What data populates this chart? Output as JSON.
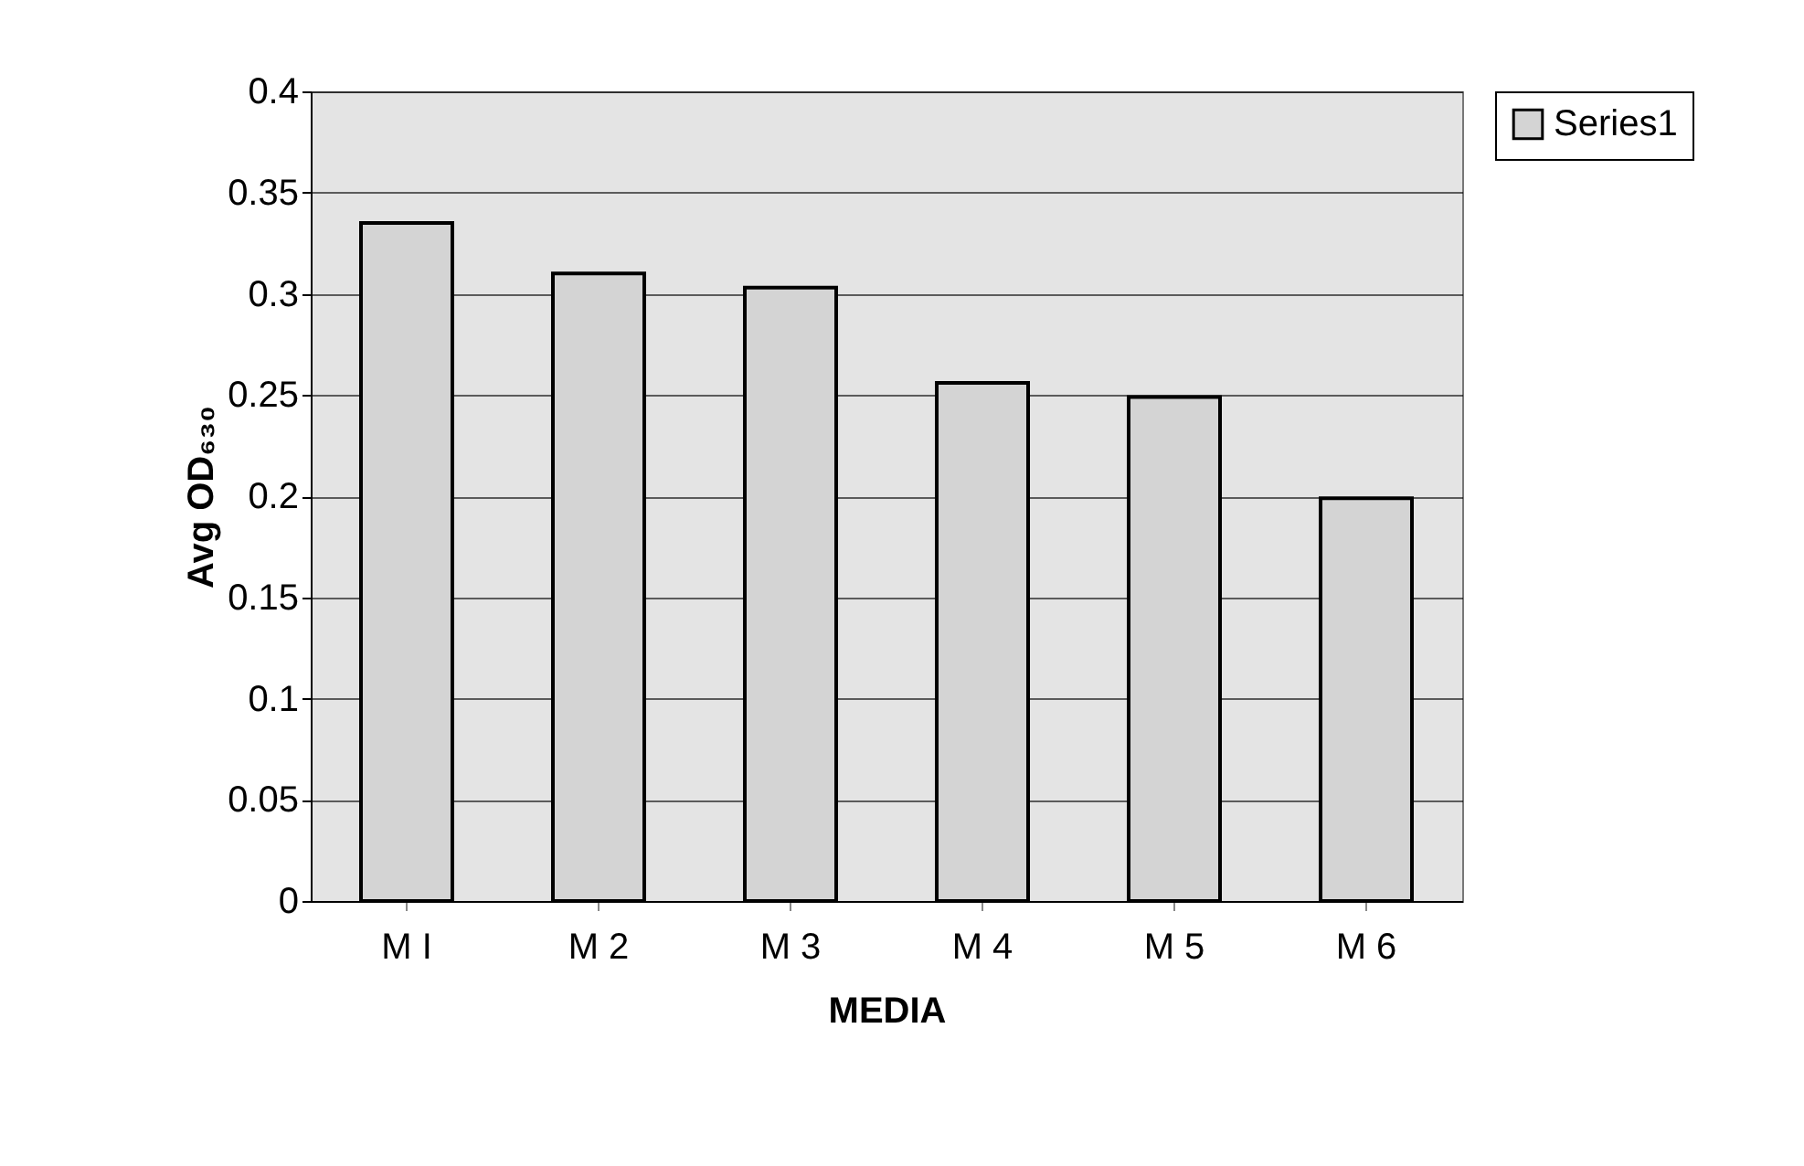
{
  "chart_data": {
    "type": "bar",
    "xlabel": "MEDIA",
    "ylabel": "Avg OD₆₃₀",
    "categories": [
      "M I",
      "M 2",
      "M 3",
      "M 4",
      "M 5",
      "M 6"
    ],
    "series": [
      {
        "name": "Series1",
        "color": "#d4d4d4",
        "values": [
          0.335,
          0.31,
          0.303,
          0.256,
          0.249,
          0.199
        ]
      }
    ],
    "ylim": [
      0,
      0.4
    ],
    "yticks": [
      0,
      0.05,
      0.1,
      0.15,
      0.2,
      0.25,
      0.3,
      0.35,
      0.4
    ],
    "grid": "y",
    "legend": "right"
  }
}
